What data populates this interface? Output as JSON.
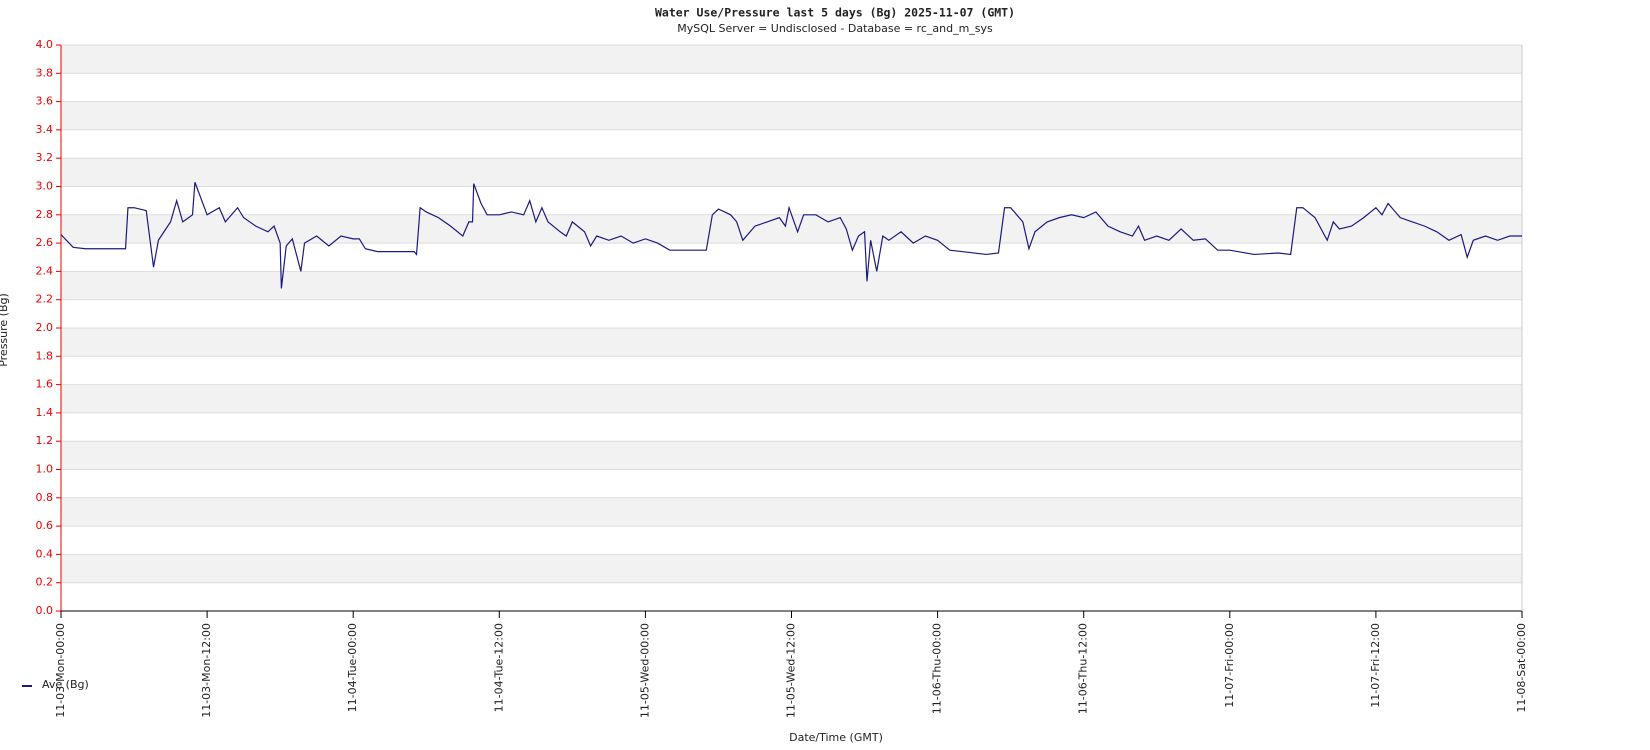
{
  "chart_data": {
    "type": "line",
    "title": "Water Use/Pressure last 5     days (Bg) 2025-11-07 (GMT)",
    "subtitle": "MySQL Server = Undisclosed - Database = rc_and_m_sys",
    "y_label": "Pressure (Bg)",
    "x_label": "Date/Time (GMT)",
    "legend": "lower-left",
    "ylim": [
      0,
      4
    ],
    "yticks": [
      {
        "value": 0,
        "label": "0.0"
      },
      0.2,
      0.4,
      0.6,
      0.8,
      {
        "value": 1,
        "label": "1.0"
      },
      1.2,
      1.4,
      1.6,
      1.8,
      {
        "value": 2,
        "label": "2.0"
      },
      2.2,
      2.4,
      2.6,
      2.8,
      {
        "value": 3,
        "label": "3.0"
      },
      3.2,
      3.4,
      3.6,
      3.8,
      {
        "value": 4,
        "label": "4.0"
      }
    ],
    "xlim": [
      0,
      120
    ],
    "xticks": [
      {
        "value": 0,
        "label": "11-03-Mon-00:00"
      },
      {
        "value": 12,
        "label": "11-03-Mon-12:00"
      },
      {
        "value": 24,
        "label": "11-04-Tue-00:00"
      },
      {
        "value": 36,
        "label": "11-04-Tue-12:00"
      },
      {
        "value": 48,
        "label": "11-05-Wed-00:00"
      },
      {
        "value": 60,
        "label": "11-05-Wed-12:00"
      },
      {
        "value": 72,
        "label": "11-06-Thu-00:00"
      },
      {
        "value": 84,
        "label": "11-06-Thu-12:00"
      },
      {
        "value": 96,
        "label": "11-07-Fri-00:00"
      },
      {
        "value": 108,
        "label": "11-07-Fri-12:00"
      },
      {
        "value": 120,
        "label": "11-08-Sat-00:00"
      }
    ],
    "x": [
      0,
      1,
      2,
      3,
      4,
      5.3,
      5.5,
      6,
      7,
      7.6,
      8,
      9,
      9.5,
      10,
      10.8,
      11,
      12,
      13,
      13.5,
      14.5,
      15,
      16,
      17,
      17.5,
      18,
      18.1,
      18.5,
      19,
      19.7,
      20,
      21,
      22,
      23,
      24,
      24.5,
      25,
      26,
      29,
      29.2,
      29.5,
      30,
      31,
      32,
      33,
      33.5,
      33.8,
      33.9,
      34.5,
      35,
      36,
      37,
      38,
      38.5,
      39,
      39.5,
      40,
      41,
      41.5,
      42,
      43,
      43.5,
      44,
      45,
      46,
      47,
      48,
      49,
      50,
      53,
      53.5,
      54,
      55,
      55.5,
      56,
      57,
      58,
      59,
      59.5,
      59.8,
      60.5,
      61,
      62,
      63,
      64,
      64.5,
      65,
      65.5,
      66,
      66.2,
      66.5,
      67,
      67.5,
      68,
      69,
      70,
      71,
      72,
      73,
      74,
      76,
      77,
      77.5,
      78,
      79,
      79.5,
      80,
      81,
      82,
      83,
      84,
      85,
      86,
      87,
      88,
      88.5,
      89,
      90,
      91,
      92,
      93,
      94,
      95,
      96,
      98,
      100,
      101,
      101.5,
      102,
      103,
      104,
      104.5,
      105,
      106,
      107,
      108,
      108.5,
      109,
      110,
      111,
      112,
      113,
      114,
      115,
      115.5,
      116,
      117,
      118,
      119,
      120
    ],
    "series": [
      {
        "name": "Ave (Bg)",
        "color": "#1a1a80",
        "values": [
          2.66,
          2.57,
          2.56,
          2.56,
          2.56,
          2.56,
          2.85,
          2.85,
          2.83,
          2.43,
          2.62,
          2.75,
          2.9,
          2.75,
          2.8,
          3.03,
          2.8,
          2.85,
          2.75,
          2.85,
          2.78,
          2.72,
          2.68,
          2.72,
          2.6,
          2.28,
          2.58,
          2.63,
          2.4,
          2.6,
          2.65,
          2.58,
          2.65,
          2.63,
          2.63,
          2.56,
          2.54,
          2.54,
          2.52,
          2.85,
          2.82,
          2.78,
          2.72,
          2.65,
          2.75,
          2.75,
          3.02,
          2.88,
          2.8,
          2.8,
          2.82,
          2.8,
          2.9,
          2.75,
          2.85,
          2.75,
          2.68,
          2.65,
          2.75,
          2.68,
          2.58,
          2.65,
          2.62,
          2.65,
          2.6,
          2.63,
          2.6,
          2.55,
          2.55,
          2.8,
          2.84,
          2.8,
          2.75,
          2.62,
          2.72,
          2.75,
          2.78,
          2.72,
          2.85,
          2.68,
          2.8,
          2.8,
          2.75,
          2.78,
          2.7,
          2.55,
          2.65,
          2.68,
          2.33,
          2.62,
          2.4,
          2.65,
          2.62,
          2.68,
          2.6,
          2.65,
          2.62,
          2.55,
          2.54,
          2.52,
          2.53,
          2.85,
          2.85,
          2.75,
          2.56,
          2.68,
          2.75,
          2.78,
          2.8,
          2.78,
          2.82,
          2.72,
          2.68,
          2.65,
          2.72,
          2.62,
          2.65,
          2.62,
          2.7,
          2.62,
          2.63,
          2.55,
          2.55,
          2.52,
          2.53,
          2.52,
          2.85,
          2.85,
          2.78,
          2.62,
          2.75,
          2.7,
          2.72,
          2.78,
          2.85,
          2.8,
          2.88,
          2.78,
          2.75,
          2.72,
          2.68,
          2.62,
          2.66,
          2.5,
          2.62,
          2.65,
          2.62,
          2.65,
          2.65
        ]
      }
    ]
  }
}
